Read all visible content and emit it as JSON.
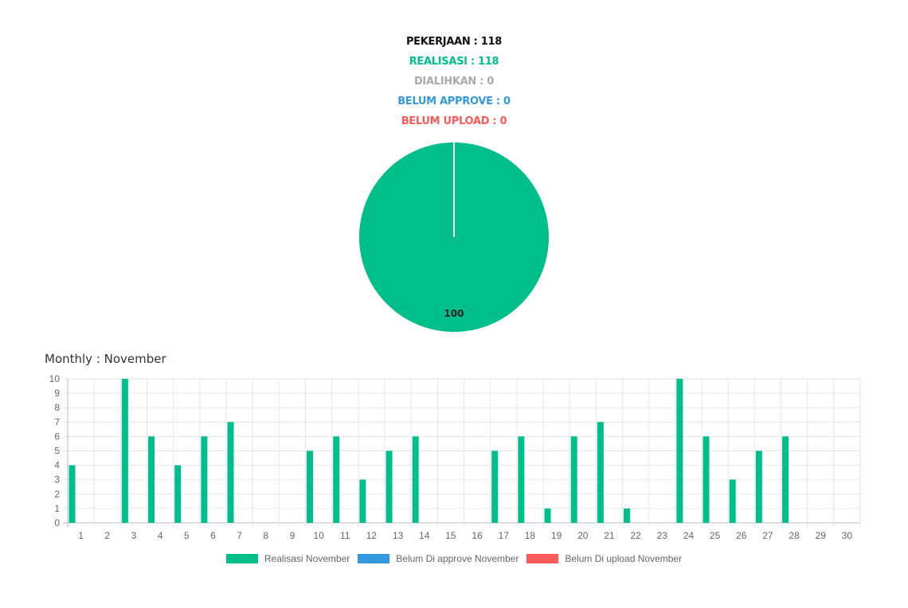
{
  "summary": {
    "pekerjaan": "PEKERJAAN : 118",
    "realisasi": "REALISASI : 118",
    "dialihkan": "DIALIHKAN : 0",
    "belum_approve": "BELUM APPROVE : 0",
    "belum_upload": "BELUM UPLOAD : 0"
  },
  "colors": {
    "realisasi": "#00bf8b",
    "dialihkan": "#a9a9a9",
    "belum_approve": "#3399dd",
    "belum_upload": "#ff5a5a"
  },
  "monthly": {
    "title": "Monthly : November"
  },
  "chart_data": [
    {
      "type": "pie",
      "labels": [
        "Realisasi",
        "Dialihkan",
        "Belum Approve",
        "Belum Upload"
      ],
      "values": [
        100,
        0,
        0,
        0
      ],
      "data_labels": [
        "100"
      ]
    },
    {
      "type": "bar",
      "categories": [
        "1",
        "2",
        "3",
        "4",
        "5",
        "6",
        "7",
        "8",
        "9",
        "10",
        "11",
        "12",
        "13",
        "14",
        "15",
        "16",
        "17",
        "18",
        "19",
        "20",
        "21",
        "22",
        "23",
        "24",
        "25",
        "26",
        "27",
        "28",
        "29",
        "30"
      ],
      "series": [
        {
          "name": "Realisasi November",
          "values": [
            4,
            0,
            10,
            6,
            4,
            6,
            7,
            0,
            0,
            5,
            6,
            3,
            5,
            6,
            0,
            0,
            5,
            6,
            1,
            6,
            7,
            1,
            0,
            10,
            6,
            3,
            5,
            6,
            0,
            0
          ]
        },
        {
          "name": "Belum Di approve November",
          "values": [
            0,
            0,
            0,
            0,
            0,
            0,
            0,
            0,
            0,
            0,
            0,
            0,
            0,
            0,
            0,
            0,
            0,
            0,
            0,
            0,
            0,
            0,
            0,
            0,
            0,
            0,
            0,
            0,
            0,
            0
          ]
        },
        {
          "name": "Belum Di upload November",
          "values": [
            0,
            0,
            0,
            0,
            0,
            0,
            0,
            0,
            0,
            0,
            0,
            0,
            0,
            0,
            0,
            0,
            0,
            0,
            0,
            0,
            0,
            0,
            0,
            0,
            0,
            0,
            0,
            0,
            0,
            0
          ]
        }
      ],
      "yticks": [
        "0",
        "1",
        "2",
        "3",
        "4",
        "5",
        "6",
        "7",
        "8",
        "9",
        "10"
      ],
      "ylim": [
        0,
        10
      ],
      "grid": true,
      "legend_position": "bottom"
    }
  ]
}
